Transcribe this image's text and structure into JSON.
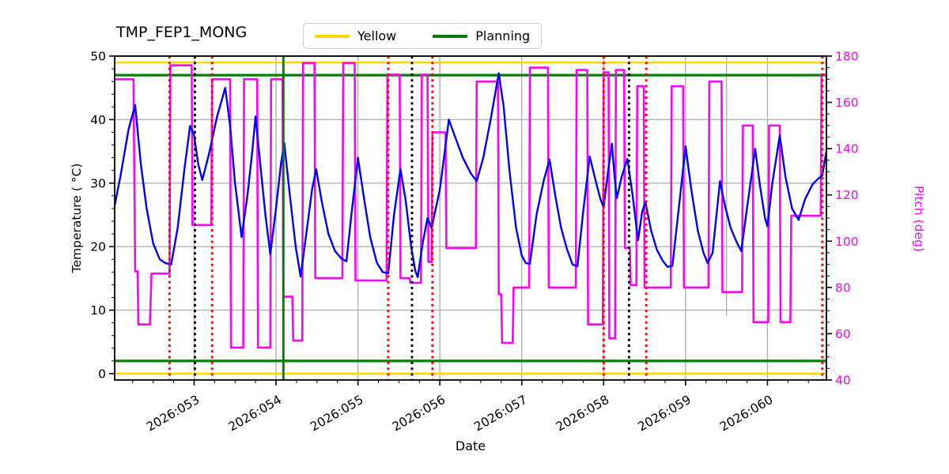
{
  "title": "TMP_FEP1_MONG",
  "legend": [
    {
      "label": "Yellow",
      "color": "#FFD700"
    },
    {
      "label": "Planning",
      "color": "#008000"
    }
  ],
  "axes": {
    "x": {
      "label": "Date",
      "min": 52.03,
      "max": 60.72,
      "ticks": [
        {
          "v": 53,
          "label": "2026:053"
        },
        {
          "v": 54,
          "label": "2026:054"
        },
        {
          "v": 55,
          "label": "2026:055"
        },
        {
          "v": 56,
          "label": "2026:056"
        },
        {
          "v": 57,
          "label": "2026:057"
        },
        {
          "v": 58,
          "label": "2026:058"
        },
        {
          "v": 59,
          "label": "2026:059"
        },
        {
          "v": 60,
          "label": "2026:060"
        }
      ],
      "minor_step": 0.25,
      "extra_gridlines": [
        59.5
      ]
    },
    "y_left": {
      "label": "Temperature ( °C)",
      "min": -1,
      "max": 50,
      "major_ticks": [
        0,
        10,
        20,
        30,
        40,
        50
      ],
      "minor_step": 2,
      "color": "#000000"
    },
    "y_right": {
      "label": "Pitch (deg)",
      "min": 40,
      "max": 180,
      "major_ticks": [
        40,
        60,
        80,
        100,
        120,
        140,
        160,
        180
      ],
      "minor_step": 5,
      "color": "#FF00FF"
    }
  },
  "chart_data": {
    "type": "line",
    "grid": true,
    "grid_color": "#b0b0b0",
    "series": [
      {
        "name": "Pitch",
        "axis": "right",
        "color": "#FF00FF",
        "width": 2.6,
        "points": [
          [
            52.03,
            170
          ],
          [
            52.26,
            170
          ],
          [
            52.28,
            87
          ],
          [
            52.31,
            87
          ],
          [
            52.32,
            64
          ],
          [
            52.46,
            64
          ],
          [
            52.48,
            86
          ],
          [
            52.7,
            86
          ],
          [
            52.71,
            176
          ],
          [
            52.97,
            176
          ],
          [
            52.98,
            107
          ],
          [
            53.21,
            107
          ],
          [
            53.22,
            170
          ],
          [
            53.44,
            170
          ],
          [
            53.45,
            54
          ],
          [
            53.6,
            54
          ],
          [
            53.61,
            170
          ],
          [
            53.77,
            170
          ],
          [
            53.78,
            54
          ],
          [
            53.93,
            54
          ],
          [
            53.94,
            170
          ],
          [
            54.08,
            170
          ],
          [
            54.09,
            76
          ],
          [
            54.2,
            76
          ],
          [
            54.21,
            57
          ],
          [
            54.32,
            57
          ],
          [
            54.33,
            177
          ],
          [
            54.47,
            177
          ],
          [
            54.48,
            84
          ],
          [
            54.81,
            84
          ],
          [
            54.82,
            177
          ],
          [
            54.96,
            177
          ],
          [
            54.97,
            83
          ],
          [
            55.35,
            83
          ],
          [
            55.36,
            172
          ],
          [
            55.51,
            172
          ],
          [
            55.52,
            84
          ],
          [
            55.63,
            84
          ],
          [
            55.64,
            82
          ],
          [
            55.77,
            82
          ],
          [
            55.78,
            172
          ],
          [
            55.85,
            172
          ],
          [
            55.86,
            91
          ],
          [
            55.9,
            91
          ],
          [
            55.91,
            147
          ],
          [
            56.07,
            147
          ],
          [
            56.08,
            97
          ],
          [
            56.44,
            97
          ],
          [
            56.45,
            169
          ],
          [
            56.71,
            169
          ],
          [
            56.72,
            77
          ],
          [
            56.75,
            77
          ],
          [
            56.76,
            56
          ],
          [
            56.89,
            56
          ],
          [
            56.9,
            80
          ],
          [
            57.09,
            80
          ],
          [
            57.1,
            175
          ],
          [
            57.32,
            175
          ],
          [
            57.33,
            80
          ],
          [
            57.66,
            80
          ],
          [
            57.67,
            174
          ],
          [
            57.8,
            174
          ],
          [
            57.81,
            64
          ],
          [
            57.99,
            64
          ],
          [
            58.0,
            173
          ],
          [
            58.06,
            173
          ],
          [
            58.07,
            58
          ],
          [
            58.14,
            58
          ],
          [
            58.15,
            174
          ],
          [
            58.25,
            174
          ],
          [
            58.26,
            97
          ],
          [
            58.32,
            97
          ],
          [
            58.33,
            81
          ],
          [
            58.4,
            81
          ],
          [
            58.41,
            167
          ],
          [
            58.49,
            167
          ],
          [
            58.5,
            80
          ],
          [
            58.82,
            80
          ],
          [
            58.83,
            167
          ],
          [
            58.97,
            167
          ],
          [
            58.98,
            80
          ],
          [
            59.28,
            80
          ],
          [
            59.29,
            169
          ],
          [
            59.44,
            169
          ],
          [
            59.45,
            78
          ],
          [
            59.69,
            78
          ],
          [
            59.7,
            150
          ],
          [
            59.82,
            150
          ],
          [
            59.83,
            65
          ],
          [
            60.01,
            65
          ],
          [
            60.02,
            150
          ],
          [
            60.15,
            150
          ],
          [
            60.16,
            65
          ],
          [
            60.28,
            65
          ],
          [
            60.29,
            111
          ],
          [
            60.65,
            111
          ],
          [
            60.66,
            172
          ],
          [
            60.72,
            172
          ]
        ]
      },
      {
        "name": "Temperature",
        "axis": "left",
        "color": "#0000FF",
        "width": 2.4,
        "points": [
          [
            52.03,
            26.5
          ],
          [
            52.1,
            31
          ],
          [
            52.2,
            38.5
          ],
          [
            52.28,
            42.3
          ],
          [
            52.35,
            33
          ],
          [
            52.42,
            26
          ],
          [
            52.5,
            20.5
          ],
          [
            52.58,
            18
          ],
          [
            52.65,
            17.4
          ],
          [
            52.72,
            17.2
          ],
          [
            52.8,
            23
          ],
          [
            52.88,
            32
          ],
          [
            52.95,
            39
          ],
          [
            53.0,
            37.5
          ],
          [
            53.05,
            33
          ],
          [
            53.1,
            30.5
          ],
          [
            53.18,
            34.5
          ],
          [
            53.28,
            40.5
          ],
          [
            53.38,
            45
          ],
          [
            53.44,
            39
          ],
          [
            53.5,
            30
          ],
          [
            53.58,
            21.5
          ],
          [
            53.65,
            28
          ],
          [
            53.71,
            35
          ],
          [
            53.75,
            40.5
          ],
          [
            53.8,
            34
          ],
          [
            53.87,
            25
          ],
          [
            53.93,
            18.8
          ],
          [
            54.0,
            26
          ],
          [
            54.06,
            33
          ],
          [
            54.1,
            36.3
          ],
          [
            54.17,
            28
          ],
          [
            54.24,
            20
          ],
          [
            54.3,
            15.3
          ],
          [
            54.37,
            22
          ],
          [
            54.44,
            29
          ],
          [
            54.49,
            32.2
          ],
          [
            54.56,
            27
          ],
          [
            54.64,
            22
          ],
          [
            54.72,
            19.3
          ],
          [
            54.8,
            18.1
          ],
          [
            54.86,
            17.7
          ],
          [
            54.92,
            25
          ],
          [
            55.0,
            34
          ],
          [
            55.07,
            28
          ],
          [
            55.15,
            21.5
          ],
          [
            55.23,
            17.5
          ],
          [
            55.3,
            16
          ],
          [
            55.37,
            15.8
          ],
          [
            55.44,
            25
          ],
          [
            55.52,
            32.2
          ],
          [
            55.58,
            27.5
          ],
          [
            55.65,
            20
          ],
          [
            55.7,
            16.2
          ],
          [
            55.73,
            15.2
          ],
          [
            55.79,
            20.5
          ],
          [
            55.85,
            24.5
          ],
          [
            55.9,
            23
          ],
          [
            56.0,
            29
          ],
          [
            56.11,
            40
          ],
          [
            56.18,
            37.5
          ],
          [
            56.28,
            34
          ],
          [
            56.38,
            31.5
          ],
          [
            56.45,
            30.3
          ],
          [
            56.53,
            34
          ],
          [
            56.62,
            40
          ],
          [
            56.72,
            47.3
          ],
          [
            56.78,
            42
          ],
          [
            56.85,
            32
          ],
          [
            56.93,
            23
          ],
          [
            57.0,
            18.6
          ],
          [
            57.05,
            17.4
          ],
          [
            57.1,
            17.3
          ],
          [
            57.18,
            25
          ],
          [
            57.27,
            30.5
          ],
          [
            57.34,
            33.7
          ],
          [
            57.41,
            28
          ],
          [
            57.48,
            23
          ],
          [
            57.55,
            19.7
          ],
          [
            57.62,
            17.2
          ],
          [
            57.68,
            16.9
          ],
          [
            57.75,
            25.5
          ],
          [
            57.83,
            34.2
          ],
          [
            57.9,
            30.5
          ],
          [
            57.96,
            27.5
          ],
          [
            58.0,
            26.2
          ],
          [
            58.05,
            31.5
          ],
          [
            58.1,
            36.2
          ],
          [
            58.13,
            31.5
          ],
          [
            58.16,
            27.6
          ],
          [
            58.22,
            31
          ],
          [
            58.29,
            33.8
          ],
          [
            58.35,
            28.5
          ],
          [
            58.42,
            21
          ],
          [
            58.47,
            25.5
          ],
          [
            58.51,
            27
          ],
          [
            58.58,
            22.5
          ],
          [
            58.65,
            19.5
          ],
          [
            58.72,
            17.8
          ],
          [
            58.78,
            16.8
          ],
          [
            58.84,
            17
          ],
          [
            58.9,
            24
          ],
          [
            59.0,
            35.8
          ],
          [
            59.07,
            29
          ],
          [
            59.15,
            22.5
          ],
          [
            59.22,
            19
          ],
          [
            59.27,
            17.4
          ],
          [
            59.33,
            19
          ],
          [
            59.42,
            30.3
          ],
          [
            59.48,
            26.5
          ],
          [
            59.55,
            23
          ],
          [
            59.62,
            20.8
          ],
          [
            59.68,
            19.3
          ],
          [
            59.76,
            27
          ],
          [
            59.85,
            35.4
          ],
          [
            59.91,
            29.5
          ],
          [
            59.97,
            24.5
          ],
          [
            60.0,
            23.2
          ],
          [
            60.06,
            30
          ],
          [
            60.15,
            37.5
          ],
          [
            60.22,
            31
          ],
          [
            60.3,
            26
          ],
          [
            60.38,
            24.2
          ],
          [
            60.46,
            27.5
          ],
          [
            60.55,
            29.8
          ],
          [
            60.62,
            30.7
          ],
          [
            60.67,
            31.2
          ],
          [
            60.72,
            35
          ]
        ]
      }
    ],
    "hlines": [
      {
        "name": "yellow-high-limit",
        "y": 49,
        "axis": "left",
        "color": "#FFD700",
        "width": 2.6
      },
      {
        "name": "yellow-low-limit",
        "y": 0,
        "axis": "left",
        "color": "#FFD700",
        "width": 2.6
      },
      {
        "name": "planning-high-limit",
        "y": 47,
        "axis": "left",
        "color": "#008000",
        "width": 3.2
      },
      {
        "name": "planning-low-limit",
        "y": 2,
        "axis": "left",
        "color": "#008000",
        "width": 3.2
      }
    ],
    "vlines": [
      {
        "name": "event-red-1",
        "x": 52.7,
        "color": "#FF0000",
        "style": "dotted"
      },
      {
        "name": "event-black-1",
        "x": 53.01,
        "color": "#000000",
        "style": "dotted"
      },
      {
        "name": "event-red-2",
        "x": 53.22,
        "color": "#FF0000",
        "style": "dotted"
      },
      {
        "name": "event-green-1",
        "x": 54.09,
        "color": "#008000",
        "style": "solid"
      },
      {
        "name": "event-red-3",
        "x": 55.37,
        "color": "#FF0000",
        "style": "dotted"
      },
      {
        "name": "event-black-2",
        "x": 55.66,
        "color": "#000000",
        "style": "dotted"
      },
      {
        "name": "event-red-4",
        "x": 55.91,
        "color": "#FF0000",
        "style": "dotted"
      },
      {
        "name": "event-red-5",
        "x": 58.0,
        "color": "#FF0000",
        "style": "dotted"
      },
      {
        "name": "event-black-3",
        "x": 58.31,
        "color": "#000000",
        "style": "dotted"
      },
      {
        "name": "event-red-6",
        "x": 58.52,
        "color": "#FF0000",
        "style": "dotted"
      },
      {
        "name": "event-red-7",
        "x": 60.67,
        "color": "#FF0000",
        "style": "dotted"
      }
    ]
  }
}
